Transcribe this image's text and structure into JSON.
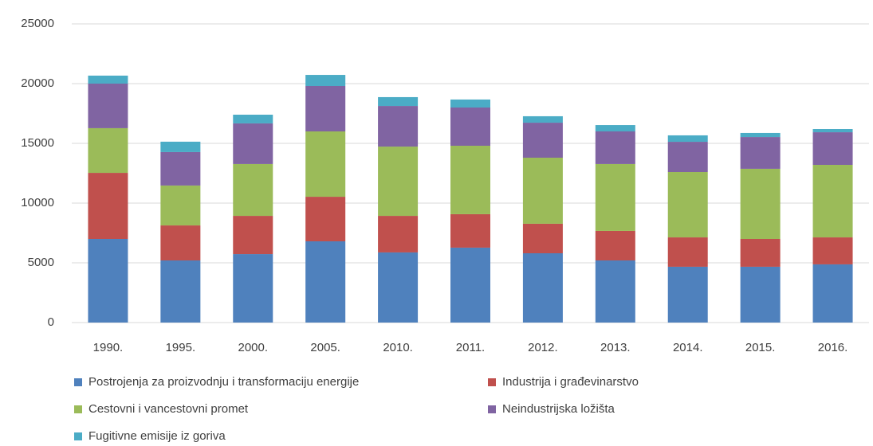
{
  "chart_data": {
    "type": "stacked_bar",
    "categories": [
      "1990.",
      "1995.",
      "2000.",
      "2005.",
      "2010.",
      "2011.",
      "2012.",
      "2013.",
      "2014.",
      "2015.",
      "2016."
    ],
    "series": [
      {
        "name": "Postrojenja za proizvodnju i transformaciju energije",
        "color": "#4f81bd",
        "values": [
          7000,
          5200,
          5730,
          6800,
          5870,
          6270,
          5800,
          5200,
          4670,
          4670,
          4870
        ]
      },
      {
        "name": "Industrija i građevinarstvo",
        "color": "#c0504d",
        "values": [
          5530,
          2930,
          3200,
          3730,
          3060,
          2800,
          2470,
          2470,
          2460,
          2330,
          2260
        ]
      },
      {
        "name": "Cestovni i vancestovni promet",
        "color": "#9bbb59",
        "values": [
          3740,
          3340,
          4340,
          5470,
          5800,
          5730,
          5530,
          5600,
          5470,
          5870,
          6070
        ]
      },
      {
        "name": "Neindustrijska ložišta",
        "color": "#8064a2",
        "values": [
          3730,
          2800,
          3400,
          3800,
          3400,
          3200,
          2930,
          2730,
          2530,
          2660,
          2730
        ]
      },
      {
        "name": "Fugitivne emisije iz goriva",
        "color": "#4bacc6",
        "values": [
          670,
          870,
          730,
          930,
          740,
          670,
          540,
          530,
          540,
          340,
          270
        ]
      }
    ],
    "ylim": [
      0,
      25000
    ],
    "yticks": [
      0,
      5000,
      10000,
      15000,
      20000,
      25000
    ],
    "grid": true
  }
}
